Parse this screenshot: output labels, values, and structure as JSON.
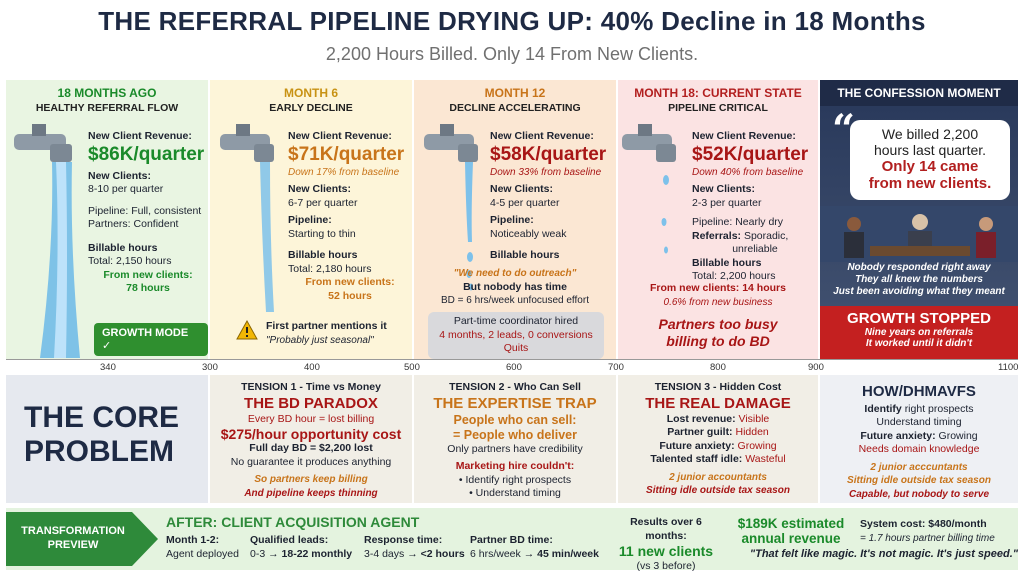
{
  "header": {
    "title": "THE REFERRAL PIPELINE DRYING UP: 40% Decline in 18 Months",
    "subtitle": "2,200 Hours Billed. Only 14 From New Clients."
  },
  "panels": [
    {
      "title": "18 MONTHS AGO",
      "sub": "HEALTHY REFERRAL FLOW",
      "rev_label": "New Client Revenue:",
      "revenue": "$86K/quarter",
      "clients_label": "New Clients:",
      "clients": "8-10 per quarter",
      "pipeline": "Pipeline: Full, consistent",
      "partners": "Partners: Confident",
      "billable": "Billable hours",
      "total": "Total: 2,150 hours",
      "from_new": "From new clients:",
      "from_new_val": "78 hours",
      "badge": "GROWTH MODE ✓"
    },
    {
      "title": "MONTH 6",
      "sub": "EARLY DECLINE",
      "rev_label": "New Client Revenue:",
      "revenue": "$71K/quarter",
      "down": "Down 17% from baseline",
      "clients_label": "New Clients:",
      "clients": "6-7 per quarter",
      "pipeline_label": "Pipeline:",
      "pipeline": "Starting to thin",
      "billable": "Billable hours",
      "total": "Total: 2,180 hours",
      "from_new": "From new clients:",
      "from_new_val": "52 hours",
      "warn": "First partner mentions it",
      "warn_quote": "\"Probably just seasonal\""
    },
    {
      "title": "MONTH 12",
      "sub": "DECLINE ACCELERATING",
      "rev_label": "New Client Revenue:",
      "revenue": "$58K/quarter",
      "down": "Down 33% from baseline",
      "clients_label": "New Clients:",
      "clients": "4-5 per quarter",
      "pipeline_label": "Pipeline:",
      "pipeline": "Noticeably weak",
      "billable": "Billable hours",
      "quote": "\"We need to do outreach\"",
      "no_time": "But nobody has time",
      "bd": "BD = 6 hrs/week unfocused effort",
      "coord_title": "Part-time coordinator hired",
      "coord_detail": "4 months, 2 leads, 0 conversions",
      "coord_quit": "Quits"
    },
    {
      "title": "MONTH 18: CURRENT STATE",
      "sub": "PIPELINE CRITICAL",
      "rev_label": "New Client Revenue:",
      "revenue": "$52K/quarter",
      "down": "Down 40% from baseline",
      "clients_label": "New Clients:",
      "clients": "2-3 per quarter",
      "pipeline": "Pipeline: Nearly dry",
      "referrals_label": "Referrals:",
      "referrals": "Sporadic,",
      "referrals2": "unreliable",
      "billable": "Billable hours",
      "total": "Total: 2,200 hours",
      "from_new": "From new clients: 14 hours",
      "pct": "0.6% from new business",
      "busy1": "Partners too busy",
      "busy2": "billing to do BD"
    },
    {
      "title": "THE CONFESSION MOMENT",
      "quote1": "We billed 2,200",
      "quote2": "hours last quarter.",
      "quote3": "Only 14 came",
      "quote4": "from new clients.",
      "cap1": "Nobody responded right away",
      "cap2": "They all knew the numbers",
      "cap3": "Just been avoiding what they meant",
      "stopped": "GROWTH STOPPED",
      "stop1": "Nine years on referrals",
      "stop2": "It worked until it didn't"
    }
  ],
  "ticks": [
    "340",
    "300",
    "400",
    "500",
    "600",
    "700",
    "800",
    "900",
    "1100"
  ],
  "core": {
    "line1": "THE CORE",
    "line2": "PROBLEM"
  },
  "tensions": [
    {
      "label": "TENSION 1 - Time vs Money",
      "title": "THE BD PARADOX",
      "l1": "Every BD hour = lost billing",
      "l2": "$275/hour opportunity cost",
      "l3": "Full day BD = $2,200 lost",
      "l4": "No guarantee it produces anything",
      "l5": "So partners keep billing",
      "l6": "And pipeline keeps thinning"
    },
    {
      "label": "TENSION 2 - Who Can Sell",
      "title": "THE EXPERTISE TRAP",
      "l1": "People who can sell:",
      "l2": "= People who deliver",
      "l3": "Only partners have credibility",
      "l4": "Marketing hire couldn't:",
      "l5": "• Identify right prospects",
      "l6": "• Understand timing"
    },
    {
      "label": "TENSION 3 - Hidden Cost",
      "title": "THE REAL DAMAGE",
      "r1k": "Lost revenue:",
      "r1v": "Visible",
      "r2k": "Partner guilt:",
      "r2v": "Hidden",
      "r3k": "Future anxiety:",
      "r3v": "Growing",
      "r4k": "Talented staff idle:",
      "r4v": "Wasteful",
      "l5": "2 junior accountants",
      "l6": "Sitting idle outside tax season"
    },
    {
      "title": "HOW/DHMAVFS",
      "l1a": "Identify",
      "l1b": "right prospects",
      "l2": "Understand timing",
      "l3a": "Future anxiety:",
      "l3b": "Growing",
      "l4": "Needs domain knowledge",
      "l5": "2 junior acccuntants",
      "l6": "Sitting idle outside tax season",
      "l7": "Capable, but nobody to serve"
    }
  ],
  "transformation": {
    "arrow1": "TRANSFORMATION",
    "arrow2": "PREVIEW",
    "title": "AFTER: CLIENT ACQUISITION AGENT",
    "m_label": "Month 1-2:",
    "m_val": "Agent deployed",
    "q_label": "Qualified leads:",
    "q_val_a": "0-3 → ",
    "q_val_b": "18-22 monthly",
    "r_label": "Response time:",
    "r_val_a": "3-4 days → ",
    "r_val_b": "<2 hours",
    "p_label": "Partner BD time:",
    "p_val_a": "6 hrs/week → ",
    "p_val_b": "45 min/week",
    "res_label": "Results over 6 months:",
    "res_val": "11 new clients",
    "res_sub": "(vs 3 before)",
    "rev1": "$189K estimated",
    "rev2": "annual revenue",
    "cost": "System cost: $480/month",
    "cost2": "= 1.7 hours partner billing time",
    "quote": "\"That felt like magic. It's not magic. It's just speed.\""
  },
  "colors": {
    "navy": "#1e2a44",
    "green": "#1a8a2a",
    "orange": "#c8741a",
    "red": "#b21f1f",
    "confession_bg": "#1f2b47",
    "stopped_bg": "#c42020"
  }
}
